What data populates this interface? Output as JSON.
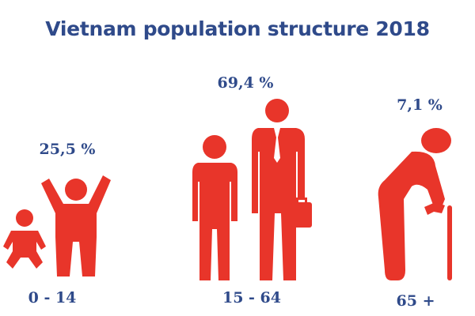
{
  "chart_data": {
    "type": "pictogram",
    "title": "Vietnam population structure 2018",
    "categories": [
      "0 - 14",
      "15 - 64",
      "65 +"
    ],
    "values": [
      25.5,
      69.4,
      7.1
    ],
    "value_labels": [
      "25,5 %",
      "69,4 %",
      "7,1 %"
    ],
    "unit": "%",
    "icons": [
      "baby-and-child-icon",
      "adult-men-icon",
      "elderly-with-cane-icon"
    ]
  },
  "colors": {
    "title": "#2f4a8a",
    "labels": "#2f4a8a",
    "figures": "#e8352a"
  }
}
